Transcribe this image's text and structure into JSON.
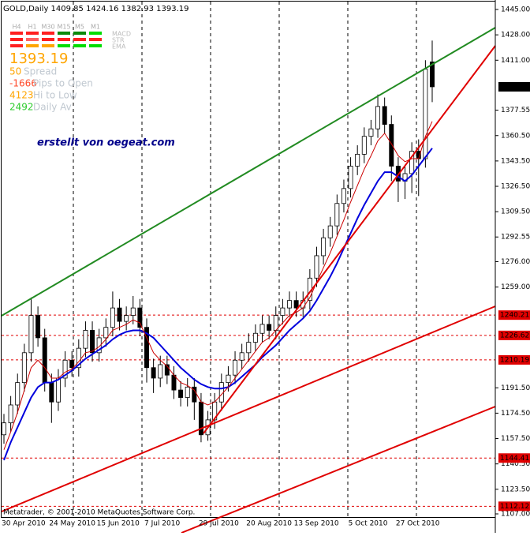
{
  "chart_data": {
    "type": "candlestick",
    "title": "GOLD,Daily  1409.85 1424.16 1382.93 1393.19",
    "watermark": "erstellt von oegeat.com",
    "footer": "Metatrader, © 2001-2010 MetaQuotes Software Corp.",
    "timeframes": [
      "H4",
      "H1",
      "M30",
      "M15",
      "M5",
      "M1"
    ],
    "indicators": [
      "MACD",
      "STR",
      "EMA"
    ],
    "current_price": {
      "value": 1393.19,
      "label": "1393.19"
    },
    "stats": [
      {
        "value": 50,
        "label": "Spread",
        "color": "#ffa500"
      },
      {
        "value": -1666,
        "label": "Pips to Open",
        "color": "#ff4a2a"
      },
      {
        "value": 4123,
        "label": "Hi to Low",
        "color": "#ffa500"
      },
      {
        "value": 2492,
        "label": "Daily Av",
        "color": "#2ecc2e"
      }
    ],
    "categories": [
      "30 Apr 2010",
      null,
      null,
      null,
      null,
      null,
      null,
      "24 May 2010",
      null,
      null,
      null,
      null,
      null,
      null,
      "15 Jun 2010",
      null,
      null,
      null,
      null,
      null,
      null,
      "7 Jul 2010",
      null,
      null,
      null,
      null,
      null,
      null,
      null,
      "29 Jul 2010",
      null,
      null,
      null,
      null,
      null,
      null,
      "20 Aug 2010",
      null,
      null,
      null,
      null,
      null,
      null,
      "13 Sep 2010",
      null,
      null,
      null,
      null,
      null,
      null,
      null,
      "5 Oct 2010",
      null,
      null,
      null,
      null,
      null,
      null,
      "27 Oct 2010",
      null,
      null,
      null,
      null,
      null
    ],
    "candles": {
      "open": [
        1160,
        1168,
        1180,
        1195,
        1215,
        1240,
        1225,
        1195,
        1182,
        1198,
        1210,
        1205,
        1218,
        1230,
        1215,
        1225,
        1232,
        1245,
        1236,
        1240,
        1245,
        1232,
        1205,
        1198,
        1207,
        1200,
        1190,
        1185,
        1192,
        1182,
        1160,
        1170,
        1182,
        1195,
        1200,
        1210,
        1215,
        1222,
        1228,
        1234,
        1230,
        1240,
        1245,
        1250,
        1245,
        1250,
        1265,
        1280,
        1292,
        1300,
        1315,
        1325,
        1340,
        1348,
        1360,
        1365,
        1380,
        1368,
        1340,
        1330,
        1335,
        1350,
        1345,
        1409.85
      ],
      "high": [
        1174,
        1186,
        1201,
        1221,
        1252,
        1246,
        1231,
        1201,
        1204,
        1216,
        1216,
        1224,
        1236,
        1236,
        1231,
        1238,
        1256,
        1251,
        1246,
        1253,
        1251,
        1238,
        1211,
        1213,
        1213,
        1206,
        1196,
        1198,
        1198,
        1188,
        1176,
        1188,
        1201,
        1206,
        1216,
        1221,
        1228,
        1234,
        1240,
        1240,
        1246,
        1251,
        1256,
        1256,
        1256,
        1271,
        1286,
        1298,
        1306,
        1321,
        1331,
        1346,
        1354,
        1366,
        1371,
        1388,
        1386,
        1374,
        1346,
        1341,
        1356,
        1358,
        1411,
        1424.16
      ],
      "low": [
        1154,
        1162,
        1174,
        1189,
        1209,
        1219,
        1189,
        1168,
        1176,
        1192,
        1199,
        1199,
        1212,
        1209,
        1209,
        1219,
        1226,
        1230,
        1230,
        1234,
        1226,
        1195,
        1188,
        1192,
        1194,
        1184,
        1179,
        1179,
        1170,
        1155,
        1156,
        1164,
        1176,
        1189,
        1194,
        1204,
        1209,
        1216,
        1222,
        1224,
        1224,
        1234,
        1239,
        1239,
        1239,
        1244,
        1259,
        1274,
        1286,
        1294,
        1309,
        1319,
        1334,
        1342,
        1354,
        1359,
        1362,
        1330,
        1316,
        1318,
        1322,
        1320,
        1339,
        1382.93
      ],
      "close": [
        1168,
        1180,
        1195,
        1215,
        1240,
        1225,
        1195,
        1182,
        1198,
        1210,
        1205,
        1218,
        1230,
        1215,
        1225,
        1232,
        1245,
        1236,
        1240,
        1245,
        1232,
        1205,
        1198,
        1207,
        1200,
        1190,
        1185,
        1192,
        1182,
        1160,
        1170,
        1182,
        1195,
        1200,
        1210,
        1215,
        1222,
        1228,
        1234,
        1230,
        1240,
        1245,
        1250,
        1245,
        1250,
        1265,
        1280,
        1292,
        1300,
        1315,
        1325,
        1340,
        1348,
        1360,
        1365,
        1380,
        1368,
        1340,
        1330,
        1335,
        1350,
        1345,
        1405,
        1393.19
      ]
    },
    "moving_averages": [
      {
        "color": "#0000dd",
        "values": [
          1143,
          1155,
          1165,
          1175,
          1185,
          1192,
          1195,
          1195,
          1197,
          1200,
          1203,
          1207,
          1211,
          1214,
          1217,
          1220,
          1224,
          1227,
          1229,
          1230,
          1230,
          1228,
          1225,
          1220,
          1215,
          1210,
          1205,
          1201,
          1197,
          1194,
          1192,
          1191,
          1191,
          1192,
          1195,
          1199,
          1203,
          1207,
          1212,
          1216,
          1220,
          1225,
          1230,
          1234,
          1238,
          1243,
          1250,
          1258,
          1266,
          1275,
          1285,
          1295,
          1305,
          1314,
          1322,
          1330,
          1336,
          1336,
          1333,
          1330,
          1334,
          1340,
          1346,
          1352
        ]
      },
      {
        "color": "#cc0000",
        "values": [
          1150,
          1162,
          1175,
          1190,
          1205,
          1210,
          1205,
          1198,
          1198,
          1202,
          1204,
          1209,
          1215,
          1216,
          1219,
          1224,
          1230,
          1232,
          1234,
          1237,
          1235,
          1225,
          1215,
          1210,
          1206,
          1200,
          1195,
          1193,
          1190,
          1182,
          1180,
          1182,
          1187,
          1192,
          1198,
          1204,
          1210,
          1216,
          1222,
          1225,
          1230,
          1235,
          1240,
          1242,
          1245,
          1252,
          1262,
          1272,
          1282,
          1293,
          1304,
          1316,
          1327,
          1338,
          1347,
          1357,
          1362,
          1355,
          1347,
          1343,
          1345,
          1345,
          1360,
          1370
        ]
      }
    ],
    "levels": [
      {
        "value": 1240.21,
        "label": "1240.21"
      },
      {
        "value": 1226.62,
        "label": "1226.62"
      },
      {
        "value": 1210.19,
        "label": "1210.19"
      },
      {
        "value": 1144.41,
        "label": "1144.41"
      },
      {
        "value": 1112.12,
        "label": "1112.12"
      }
    ],
    "level_color": "#e00000",
    "ylim": [
      1107,
      1445
    ],
    "yticks": [
      {
        "value": 1445,
        "label": "1445.00"
      },
      {
        "value": 1428,
        "label": "1428.00"
      },
      {
        "value": 1411,
        "label": "1411.00"
      },
      {
        "value": 1377.55,
        "label": "1377.55"
      },
      {
        "value": 1360.5,
        "label": "1360.50"
      },
      {
        "value": 1343.5,
        "label": "1343.50"
      },
      {
        "value": 1326.5,
        "label": "1326.50"
      },
      {
        "value": 1309.5,
        "label": "1309.50"
      },
      {
        "value": 1292.55,
        "label": "1292.55"
      },
      {
        "value": 1276,
        "label": "1276.00"
      },
      {
        "value": 1259,
        "label": "1259.00"
      },
      {
        "value": 1191.5,
        "label": "1191.50"
      },
      {
        "value": 1174.5,
        "label": "1174.50"
      },
      {
        "value": 1157.5,
        "label": "1157.50"
      },
      {
        "value": 1140.5,
        "label": "1140.50"
      },
      {
        "value": 1123.5,
        "label": "1123.50"
      },
      {
        "value": 1107,
        "label": "1107.00"
      }
    ]
  }
}
